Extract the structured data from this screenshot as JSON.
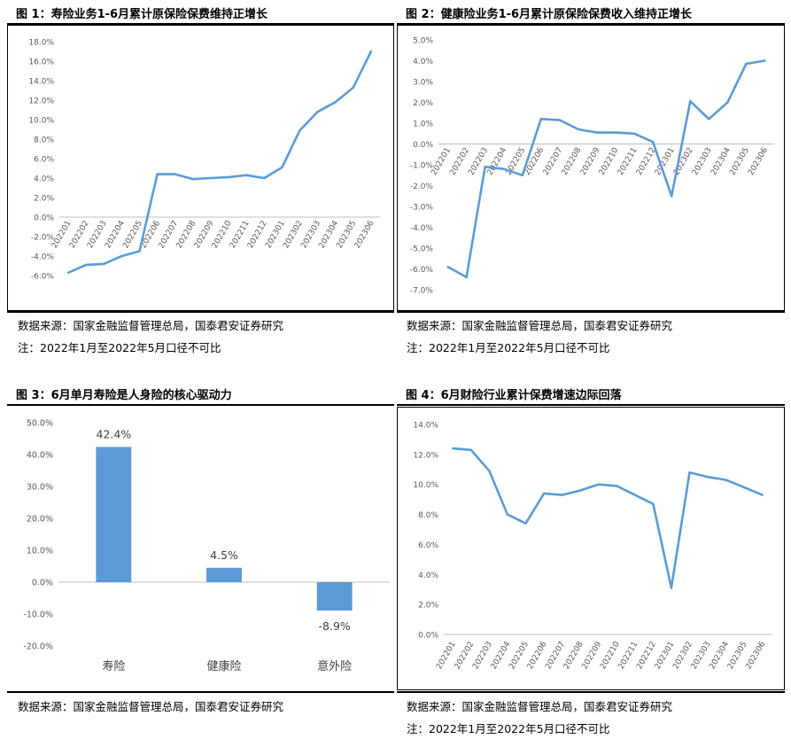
{
  "panels": [
    {
      "title": "图 1：寿险业务1-6月累计原保险保费维持正增长",
      "source": "数据来源：国家金融监督管理总局，国泰君安证券研究",
      "note": "注：2022年1月至2022年5月口径不可比",
      "chart_data": {
        "type": "line",
        "title": "",
        "xlabel": "",
        "ylabel": "",
        "ylim": [
          -6.0,
          18.0
        ],
        "yticks": [
          "18.0%",
          "16.0%",
          "14.0%",
          "12.0%",
          "10.0%",
          "8.0%",
          "6.0%",
          "4.0%",
          "2.0%",
          "0.0%",
          "-2.0%",
          "-4.0%",
          "-6.0%"
        ],
        "categories": [
          "202201",
          "202202",
          "202203",
          "202204",
          "202205",
          "202206",
          "202207",
          "202208",
          "202209",
          "202210",
          "202211",
          "202212",
          "202301",
          "202302",
          "202303",
          "202304",
          "202305",
          "202306"
        ],
        "series": [
          {
            "values": [
              -5.7,
              -4.9,
              -4.8,
              -4.0,
              -3.5,
              4.4,
              4.4,
              3.9,
              4.0,
              4.1,
              4.3,
              4.0,
              5.1,
              8.9,
              10.8,
              11.8,
              13.3,
              17.0
            ]
          }
        ],
        "color": "#5B9BD5",
        "grid": false
      }
    },
    {
      "title": "图 2：健康险业务1-6月累计原保险保费收入维持正增长",
      "source": "数据来源：国家金融监督管理总局，国泰君安证券研究",
      "note": "注：2022年1月至2022年5月口径不可比",
      "chart_data": {
        "type": "line",
        "title": "",
        "xlabel": "",
        "ylabel": "",
        "ylim": [
          -7.0,
          5.0
        ],
        "yticks": [
          "5.0%",
          "4.0%",
          "3.0%",
          "2.0%",
          "1.0%",
          "0.0%",
          "-1.0%",
          "-2.0%",
          "-3.0%",
          "-4.0%",
          "-5.0%",
          "-6.0%",
          "-7.0%"
        ],
        "categories": [
          "202201",
          "202202",
          "202203",
          "202204",
          "202205",
          "202206",
          "202207",
          "202208",
          "202209",
          "202210",
          "202211",
          "202212",
          "202301",
          "202302",
          "202303",
          "202304",
          "202305",
          "202306"
        ],
        "series": [
          {
            "values": [
              -5.9,
              -6.4,
              -1.1,
              -1.2,
              -1.5,
              1.2,
              1.15,
              0.7,
              0.55,
              0.55,
              0.5,
              0.1,
              -2.5,
              2.05,
              1.2,
              2.0,
              3.85,
              4.0
            ]
          }
        ],
        "color": "#5B9BD5",
        "grid": false
      }
    },
    {
      "title": "图 3：6月单月寿险是人身险的核心驱动力",
      "source": "数据来源：国家金融监督管理总局，国泰君安证券研究",
      "note": "",
      "chart_data": {
        "type": "bar",
        "title": "",
        "xlabel": "",
        "ylabel": "",
        "ylim": [
          -20.0,
          50.0
        ],
        "yticks": [
          "50.0%",
          "40.0%",
          "30.0%",
          "20.0%",
          "10.0%",
          "0.0%",
          "-10.0%",
          "-20.0%"
        ],
        "categories": [
          "寿险",
          "健康险",
          "意外险"
        ],
        "values": [
          42.4,
          4.5,
          -8.9
        ],
        "data_labels": [
          "42.4%",
          "4.5%",
          "-8.9%"
        ],
        "color": "#5B9BD5",
        "grid": false
      }
    },
    {
      "title": "图 4：6月财险行业累计保费增速边际回落",
      "source": "数据来源：国家金融监督管理总局，国泰君安证券研究",
      "note": "注：2022年1月至2022年5月口径不可比",
      "chart_data": {
        "type": "line",
        "title": "",
        "xlabel": "",
        "ylabel": "",
        "ylim": [
          0.0,
          14.0
        ],
        "yticks": [
          "14.0%",
          "12.0%",
          "10.0%",
          "8.0%",
          "6.0%",
          "4.0%",
          "2.0%",
          "0.0%"
        ],
        "categories": [
          "202201",
          "202202",
          "202203",
          "202204",
          "202205",
          "202206",
          "202207",
          "202208",
          "202209",
          "202210",
          "202211",
          "202212",
          "202301",
          "202302",
          "202303",
          "202304",
          "202305",
          "202306"
        ],
        "series": [
          {
            "values": [
              12.4,
              12.3,
              10.9,
              8.0,
              7.4,
              9.4,
              9.3,
              9.6,
              10.0,
              9.9,
              9.3,
              8.7,
              3.1,
              10.8,
              10.5,
              10.3,
              9.8,
              9.3
            ]
          }
        ],
        "color": "#5B9BD5",
        "grid": false
      }
    }
  ]
}
